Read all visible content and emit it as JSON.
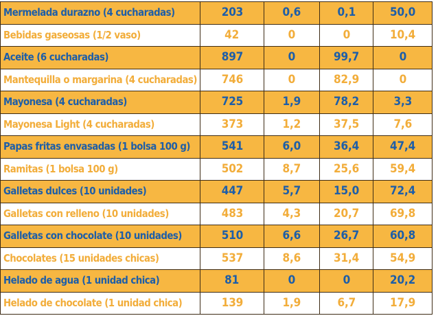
{
  "table": {
    "rows": [
      {
        "name": "Mermelada durazno (4 cucharadas)",
        "kcal": "203",
        "protein": "0,6",
        "fat": "0,1",
        "carbs": "50,0"
      },
      {
        "name": "Bebidas gaseosas (1/2 vaso)",
        "kcal": "42",
        "protein": "0",
        "fat": "0",
        "carbs": "10,4"
      },
      {
        "name": "Aceite (6 cucharadas)",
        "kcal": "897",
        "protein": "0",
        "fat": "99,7",
        "carbs": "0"
      },
      {
        "name": "Mantequilla o margarina (4 cucharadas)",
        "kcal": "746",
        "protein": "0",
        "fat": "82,9",
        "carbs": "0"
      },
      {
        "name": "Mayonesa (4 cucharadas)",
        "kcal": "725",
        "protein": "1,9",
        "fat": "78,2",
        "carbs": "3,3"
      },
      {
        "name": "Mayonesa Light (4 cucharadas)",
        "kcal": "373",
        "protein": "1,2",
        "fat": "37,5",
        "carbs": "7,6"
      },
      {
        "name": "Papas fritas envasadas (1 bolsa 100 g)",
        "kcal": "541",
        "protein": "6,0",
        "fat": "36,4",
        "carbs": "47,4"
      },
      {
        "name": "Ramitas (1 bolsa 100 g)",
        "kcal": "502",
        "protein": "8,7",
        "fat": "25,6",
        "carbs": "59,4"
      },
      {
        "name": "Galletas dulces (10 unidades)",
        "kcal": "447",
        "protein": "5,7",
        "fat": "15,0",
        "carbs": "72,4"
      },
      {
        "name": "Galletas con relleno (10 unidades)",
        "kcal": "483",
        "protein": "4,3",
        "fat": "20,7",
        "carbs": "69,8"
      },
      {
        "name": "Galletas con chocolate (10 unidades)",
        "kcal": "510",
        "protein": "6,6",
        "fat": "26,7",
        "carbs": "60,8"
      },
      {
        "name": "Chocolates (15 unidades chicas)",
        "kcal": "537",
        "protein": "8,6",
        "fat": "31,4",
        "carbs": "54,9"
      },
      {
        "name": "Helado de agua (1 unidad chica)",
        "kcal": "81",
        "protein": "0",
        "fat": "0",
        "carbs": "20,2"
      },
      {
        "name": "Helado de chocolate (1 unidad chica)",
        "kcal": "139",
        "protein": "1,9",
        "fat": "6,7",
        "carbs": "17,9"
      }
    ]
  },
  "colors": {
    "band_orange": "#f7b742",
    "band_white": "#ffffff",
    "text_blue": "#1d5ea8",
    "text_orange": "#f2ad3a",
    "border": "#3d2b14"
  }
}
